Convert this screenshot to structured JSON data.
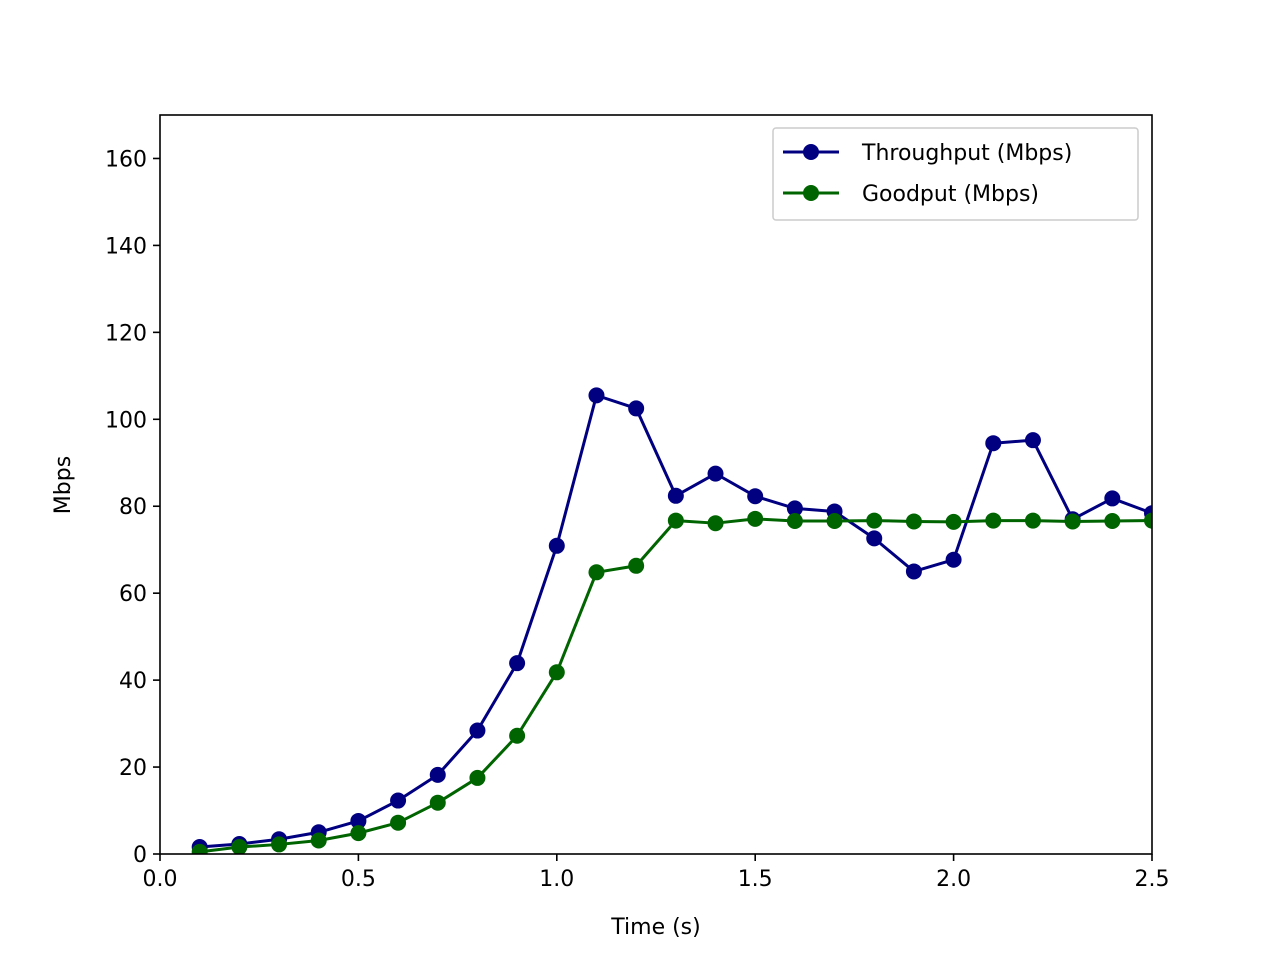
{
  "chart_data": {
    "type": "line",
    "title": "",
    "xlabel": "Time (s)",
    "ylabel": "Mbps",
    "xlim": [
      0.0,
      2.5
    ],
    "ylim": [
      0,
      170
    ],
    "x_ticks": [
      0.0,
      0.5,
      1.0,
      1.5,
      2.0,
      2.5
    ],
    "x_tick_labels": [
      "0.0",
      "0.5",
      "1.0",
      "1.5",
      "2.0",
      "2.5"
    ],
    "y_ticks": [
      0,
      20,
      40,
      60,
      80,
      100,
      120,
      140,
      160
    ],
    "y_tick_labels": [
      "0",
      "20",
      "40",
      "60",
      "80",
      "100",
      "120",
      "140",
      "160"
    ],
    "grid": false,
    "legend_position": "top-right",
    "x": [
      0.1,
      0.2,
      0.3,
      0.4,
      0.5,
      0.6,
      0.7,
      0.8,
      0.9,
      1.0,
      1.1,
      1.2,
      1.3,
      1.4,
      1.5,
      1.6,
      1.7,
      1.8,
      1.9,
      2.0,
      2.1,
      2.2,
      2.3,
      2.4,
      2.5
    ],
    "series": [
      {
        "name": "Throughput (Mbps)",
        "color": "#000080",
        "marker": "circle",
        "values": [
          1.6,
          2.3,
          3.4,
          5.0,
          7.6,
          12.3,
          18.2,
          28.4,
          43.9,
          70.9,
          105.5,
          102.5,
          82.4,
          87.5,
          82.3,
          79.5,
          78.8,
          72.6,
          65.0,
          67.7,
          94.5,
          95.2,
          77.0,
          81.8,
          78.4
        ]
      },
      {
        "name": "Goodput (Mbps)",
        "color": "#006400",
        "marker": "circle",
        "values": [
          0.5,
          1.6,
          2.2,
          3.1,
          4.8,
          7.2,
          11.8,
          17.5,
          27.2,
          41.8,
          64.8,
          66.3,
          76.7,
          76.1,
          77.1,
          76.6,
          76.6,
          76.7,
          76.5,
          76.4,
          76.7,
          76.7,
          76.5,
          76.6,
          76.7
        ]
      }
    ]
  }
}
